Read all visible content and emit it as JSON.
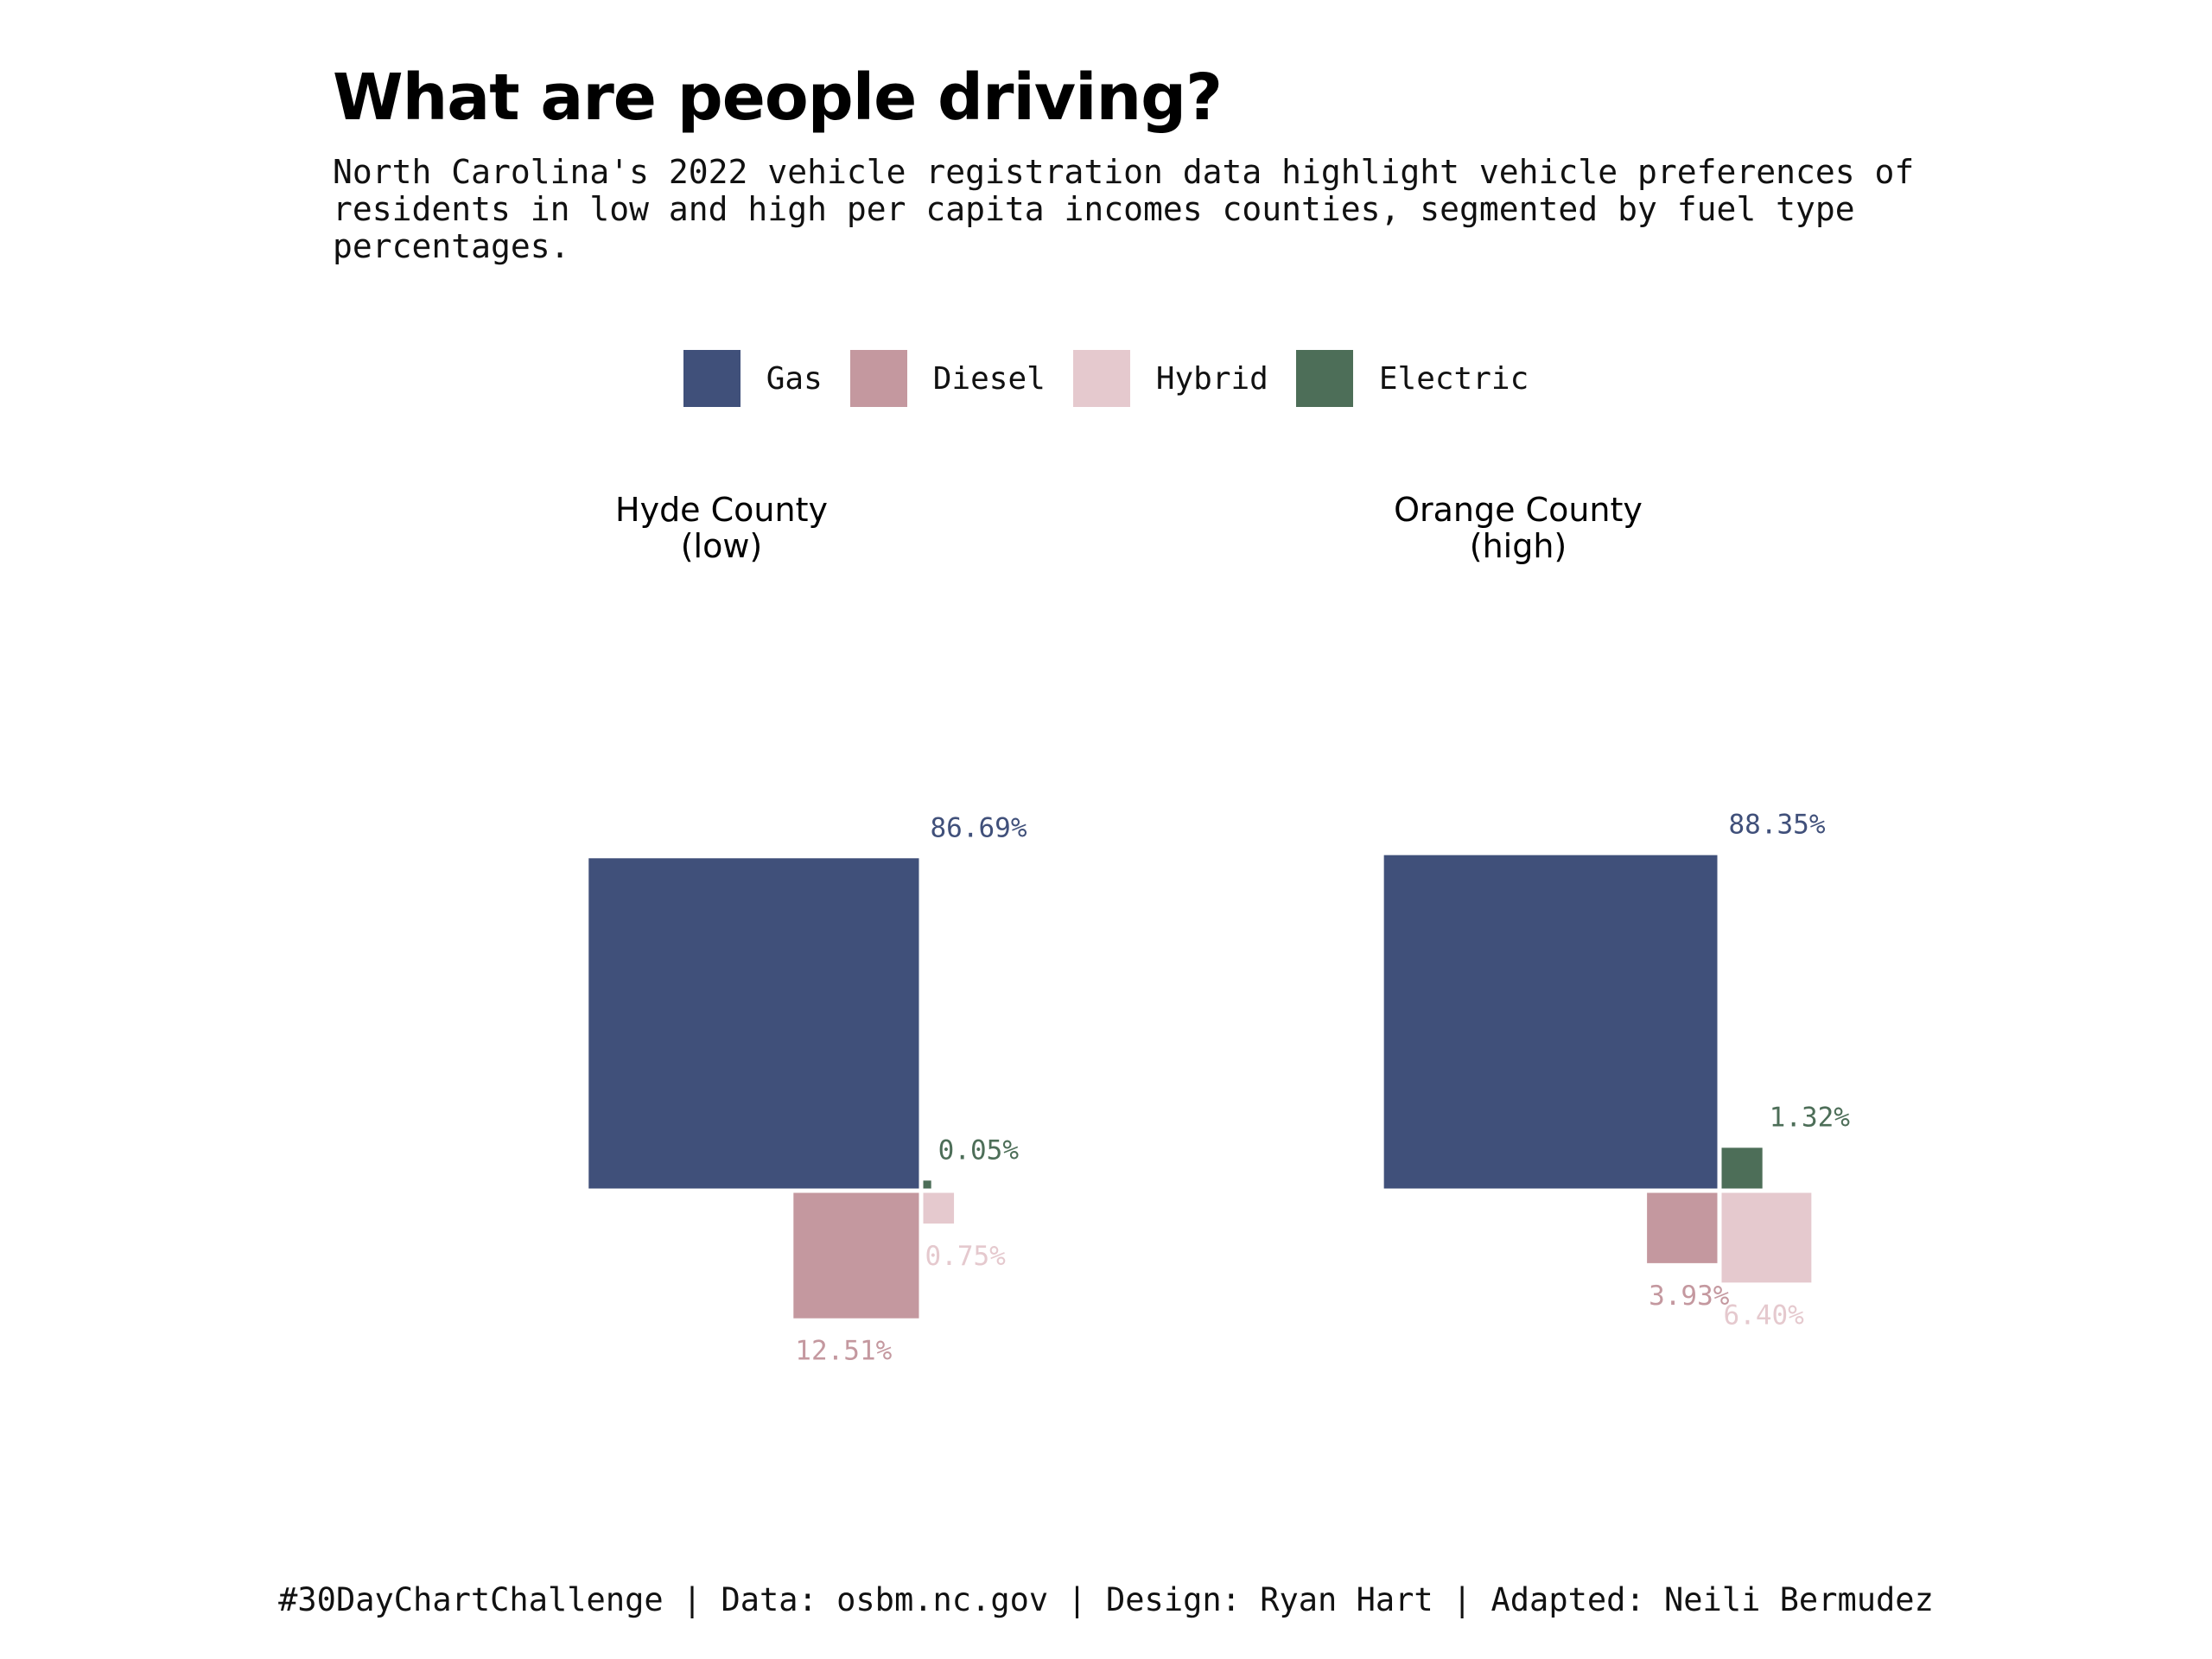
{
  "page": {
    "title": "What are people driving?",
    "subtitle": "North Carolina's 2022 vehicle registration data highlight vehicle preferences of residents in low and high per capita incomes counties, segmented by fuel type percentages.",
    "caption": "#30DayChartChallenge | Data: osbm.nc.gov | Design: Ryan Hart | Adapted: Neili Bermudez"
  },
  "legend": [
    {
      "label": "Gas",
      "color": "#40507a"
    },
    {
      "label": "Diesel",
      "color": "#c4989f"
    },
    {
      "label": "Hybrid",
      "color": "#e5c9ce"
    },
    {
      "label": "Electric",
      "color": "#4d6e58"
    }
  ],
  "chart_data": {
    "type": "proportional-area squares",
    "panels": [
      {
        "title_line1": "Hyde County",
        "title_line2": "(low)",
        "values": {
          "Gas": 86.69,
          "Diesel": 12.51,
          "Hybrid": 0.75,
          "Electric": 0.05
        },
        "labels": {
          "Gas": "86.69%",
          "Diesel": "12.51%",
          "Hybrid": "0.75%",
          "Electric": "0.05%"
        }
      },
      {
        "title_line1": "Orange County",
        "title_line2": "(high)",
        "values": {
          "Gas": 88.35,
          "Diesel": 3.93,
          "Hybrid": 6.4,
          "Electric": 1.32
        },
        "labels": {
          "Gas": "88.35%",
          "Diesel": "3.93%",
          "Hybrid": "6.40%",
          "Electric": "1.32%"
        }
      }
    ],
    "colors": {
      "Gas": "#40507a",
      "Diesel": "#c4989f",
      "Hybrid": "#e5c9ce",
      "Electric": "#4d6e58"
    }
  }
}
